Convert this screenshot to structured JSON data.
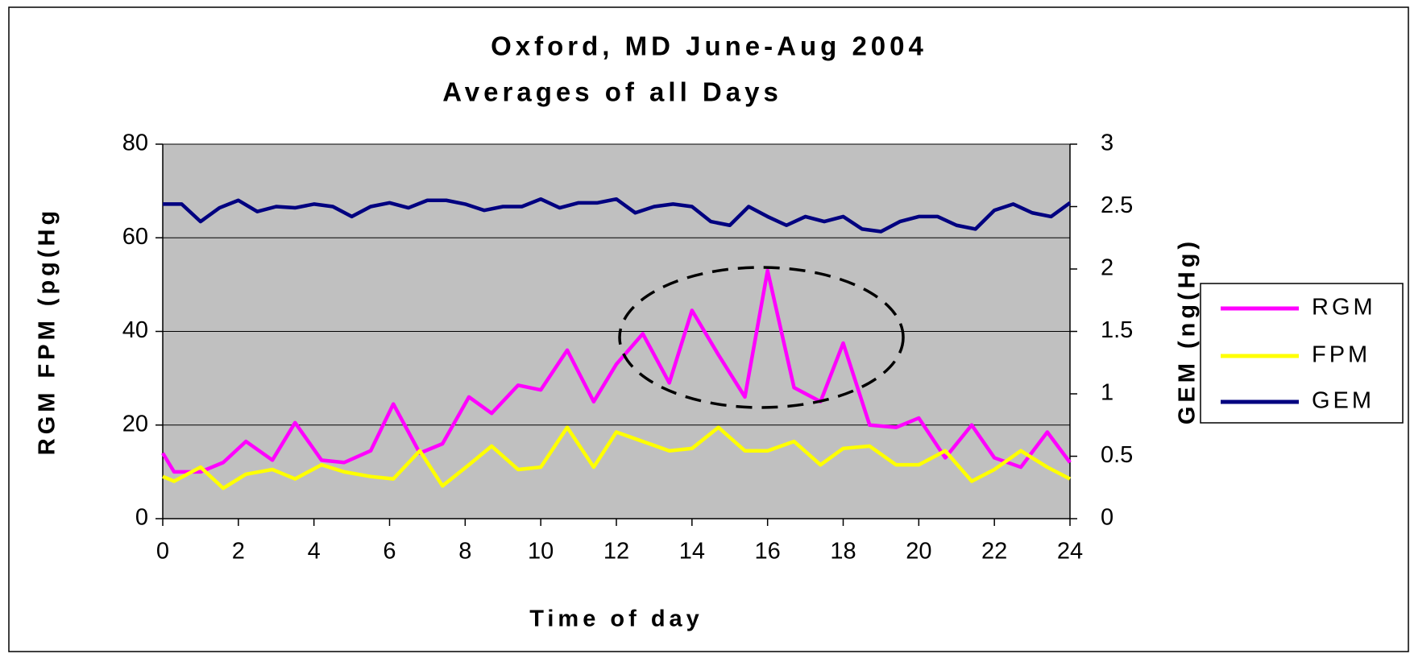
{
  "chart_data": {
    "type": "line",
    "title": "Oxford, MD June-Aug 2004",
    "subtitle": "Averages of all Days",
    "x_label": "Time of day",
    "y_label": "RGM FPM (pg(Hg",
    "y2_label": "GEM  (ng(Hg)",
    "xlim": [
      0,
      24
    ],
    "xticks": [
      0,
      2,
      4,
      6,
      8,
      10,
      12,
      14,
      16,
      18,
      20,
      22,
      24
    ],
    "ylim": [
      0,
      80
    ],
    "yticks": [
      0,
      20,
      40,
      60,
      80
    ],
    "y2lim": [
      0,
      3
    ],
    "y2ticks": [
      0,
      0.5,
      1,
      1.5,
      2,
      2.5,
      3
    ],
    "grid": true,
    "legend": "right",
    "series": [
      {
        "name": "RGM",
        "color": "#ff00ff",
        "x": [
          0,
          0.3,
          1.0,
          1.6,
          2.2,
          2.9,
          3.5,
          4.2,
          4.8,
          5.5,
          6.1,
          6.8,
          7.4,
          8.1,
          8.7,
          9.4,
          10,
          10.7,
          11.4,
          12,
          12.7,
          13.4,
          14,
          14.7,
          15.4,
          16,
          16.7,
          17.4,
          18,
          18.7,
          19.4,
          20,
          20.7,
          21.4,
          22,
          22.7,
          23.4,
          24
        ],
        "values": [
          14,
          10,
          10,
          12,
          16.5,
          12.5,
          20.5,
          12.5,
          12,
          14.5,
          24.5,
          14,
          16,
          26,
          22.5,
          28.5,
          27.5,
          36,
          25,
          33,
          39.5,
          29,
          44.5,
          35,
          26,
          53,
          28,
          25,
          37.5,
          20,
          19.5,
          21.5,
          13,
          20,
          13,
          11,
          18.5,
          12
        ]
      },
      {
        "name": "FPM",
        "color": "#ffff00",
        "x": [
          0,
          0.3,
          1.0,
          1.6,
          2.2,
          2.9,
          3.5,
          4.2,
          4.8,
          5.5,
          6.1,
          6.8,
          7.4,
          8.1,
          8.7,
          9.4,
          10,
          10.7,
          11.4,
          12,
          12.7,
          13.4,
          14,
          14.7,
          15.4,
          16,
          16.7,
          17.4,
          18,
          18.7,
          19.4,
          20,
          20.7,
          21.4,
          22,
          22.7,
          23.4,
          24
        ],
        "values": [
          9,
          8,
          11,
          6.5,
          9.5,
          10.5,
          8.5,
          11.5,
          10,
          9,
          8.5,
          14.5,
          7,
          11.5,
          15.5,
          10.5,
          11,
          19.5,
          11,
          18.5,
          16.5,
          14.5,
          15,
          19.5,
          14.5,
          14.5,
          16.5,
          11.5,
          15,
          15.5,
          11.5,
          11.5,
          14.5,
          8,
          10.5,
          14.5,
          11,
          8.5
        ]
      },
      {
        "name": "GEM",
        "color": "#000080",
        "axis": "y2",
        "x": [
          0,
          0.5,
          1,
          1.5,
          2,
          2.5,
          3,
          3.5,
          4,
          4.5,
          5,
          5.5,
          6,
          6.5,
          7,
          7.5,
          8,
          8.5,
          9,
          9.5,
          10,
          10.5,
          11,
          11.5,
          12,
          12.5,
          13,
          13.5,
          14,
          14.5,
          15,
          15.5,
          16,
          16.5,
          17,
          17.5,
          18,
          18.5,
          19,
          19.5,
          20,
          20.5,
          21,
          21.5,
          22,
          22.5,
          23,
          23.5,
          24
        ],
        "values": [
          2.52,
          2.52,
          2.38,
          2.49,
          2.55,
          2.46,
          2.5,
          2.49,
          2.52,
          2.5,
          2.42,
          2.5,
          2.53,
          2.49,
          2.55,
          2.55,
          2.52,
          2.47,
          2.5,
          2.5,
          2.56,
          2.49,
          2.53,
          2.53,
          2.56,
          2.45,
          2.5,
          2.52,
          2.5,
          2.38,
          2.35,
          2.5,
          2.42,
          2.35,
          2.42,
          2.38,
          2.42,
          2.32,
          2.3,
          2.38,
          2.42,
          2.42,
          2.35,
          2.32,
          2.47,
          2.52,
          2.45,
          2.42,
          2.53
        ]
      }
    ]
  }
}
